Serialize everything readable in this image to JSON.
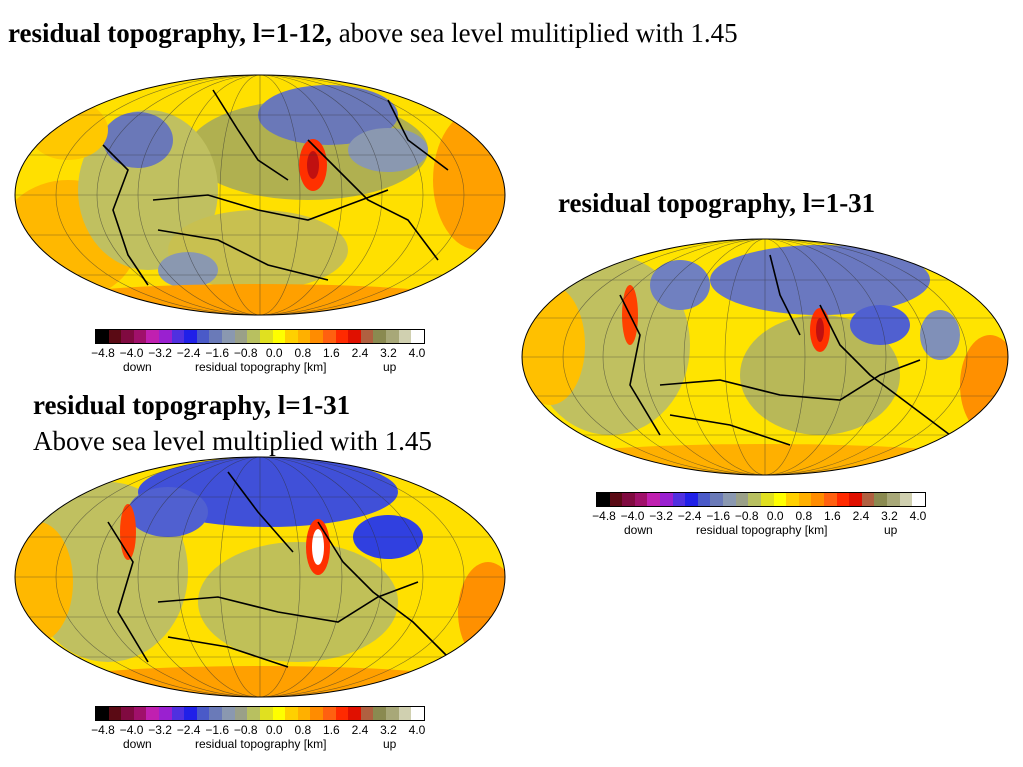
{
  "titles": {
    "t1_bold": "residual topography, l=1-12,",
    "t1_rest": " above sea level mulitiplied with 1.45",
    "t2": "residual topography, l=1-31",
    "t3_bold": "residual topography, l=1-31",
    "t3_line2": "Above sea level multiplied with 1.45"
  },
  "colorbar": {
    "ticks": [
      "−4.8",
      "−4.0",
      "−3.2",
      "−2.4",
      "−1.6",
      "−0.8",
      "0.0",
      "0.8",
      "1.6",
      "2.4",
      "3.2",
      "4.0"
    ],
    "down": "down",
    "label": "residual topography [km]",
    "up": "up",
    "colors": [
      "#000000",
      "#5a0a14",
      "#800a40",
      "#a0106a",
      "#c020b0",
      "#9a20d0",
      "#5030e0",
      "#2020e8",
      "#4a5ac8",
      "#6a7ab8",
      "#8a98b0",
      "#9aa088",
      "#b8c060",
      "#e0e020",
      "#ffff00",
      "#ffd000",
      "#ffb000",
      "#ff8c00",
      "#ff6010",
      "#ff2a00",
      "#e01000",
      "#b06040",
      "#8a8a50",
      "#a8a878",
      "#d0d0b0",
      "#ffffff"
    ]
  },
  "maps": {
    "map1": {
      "name": "residual topography l=1-12 scaled"
    },
    "map2": {
      "name": "residual topography l=1-31"
    },
    "map3": {
      "name": "residual topography l=1-31 scaled"
    }
  }
}
